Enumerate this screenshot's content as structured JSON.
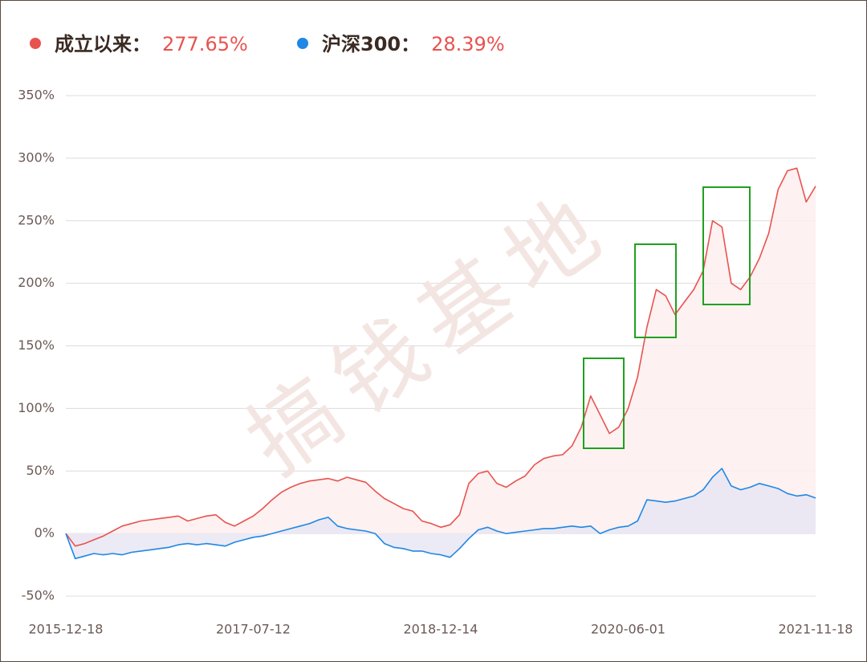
{
  "chart_data": {
    "type": "line",
    "watermark": "搞钱基地",
    "categories": [
      "2015-12-18",
      null,
      null,
      null,
      null,
      null,
      null,
      null,
      null,
      null,
      null,
      null,
      null,
      null,
      null,
      null,
      null,
      null,
      null,
      null,
      "2017-07-12",
      null,
      null,
      null,
      null,
      null,
      null,
      null,
      null,
      null,
      null,
      null,
      null,
      null,
      null,
      null,
      null,
      null,
      null,
      null,
      "2018-12-14",
      null,
      null,
      null,
      null,
      null,
      null,
      null,
      null,
      null,
      null,
      null,
      null,
      null,
      null,
      null,
      null,
      null,
      null,
      null,
      "2020-06-01",
      null,
      null,
      null,
      null,
      null,
      null,
      null,
      null,
      null,
      null,
      null,
      null,
      null,
      null,
      null,
      null,
      null,
      null,
      null,
      "2021-11-18"
    ],
    "series": [
      {
        "name": "成立以来：",
        "summary": "277.65%",
        "color": "#e8534f",
        "area": "#fdeeee",
        "values": [
          0,
          -10,
          -8,
          -5,
          -2,
          2,
          6,
          8,
          10,
          11,
          12,
          13,
          14,
          10,
          12,
          14,
          15,
          9,
          6,
          10,
          14,
          20,
          27,
          33,
          37,
          40,
          42,
          43,
          44,
          42,
          45,
          43,
          41,
          34,
          28,
          24,
          20,
          18,
          10,
          8,
          5,
          7,
          15,
          40,
          48,
          50,
          40,
          37,
          42,
          46,
          55,
          60,
          62,
          63,
          70,
          85,
          110,
          95,
          80,
          85,
          100,
          125,
          165,
          195,
          190,
          175,
          185,
          195,
          210,
          250,
          245,
          200,
          195,
          205,
          220,
          240,
          275,
          290,
          292,
          265,
          277.65
        ]
      },
      {
        "name": "沪深300：",
        "summary": "28.39%",
        "color": "#1e88e5",
        "area": "#e9e6f3",
        "values": [
          0,
          -20,
          -18,
          -16,
          -17,
          -16,
          -17,
          -15,
          -14,
          -13,
          -12,
          -11,
          -9,
          -8,
          -9,
          -8,
          -9,
          -10,
          -7,
          -5,
          -3,
          -2,
          0,
          2,
          4,
          6,
          8,
          11,
          13,
          6,
          4,
          3,
          2,
          0,
          -8,
          -11,
          -12,
          -14,
          -14,
          -16,
          -17,
          -19,
          -12,
          -4,
          3,
          5,
          2,
          0,
          1,
          2,
          3,
          4,
          4,
          5,
          6,
          5,
          6,
          0,
          3,
          5,
          6,
          10,
          27,
          26,
          25,
          26,
          28,
          30,
          35,
          45,
          52,
          38,
          35,
          37,
          40,
          38,
          36,
          32,
          30,
          31,
          28.39
        ]
      }
    ],
    "ylim": [
      -50,
      350
    ],
    "yticks": [
      {
        "value": -50,
        "label": "-50%"
      },
      {
        "value": 0,
        "label": "0%"
      },
      {
        "value": 50,
        "label": "50%"
      },
      {
        "value": 100,
        "label": "100%"
      },
      {
        "value": 150,
        "label": "150%"
      },
      {
        "value": 200,
        "label": "200%"
      },
      {
        "value": 250,
        "label": "250%"
      },
      {
        "value": 300,
        "label": "300%"
      },
      {
        "value": 350,
        "label": "350%"
      }
    ],
    "grid": true
  }
}
